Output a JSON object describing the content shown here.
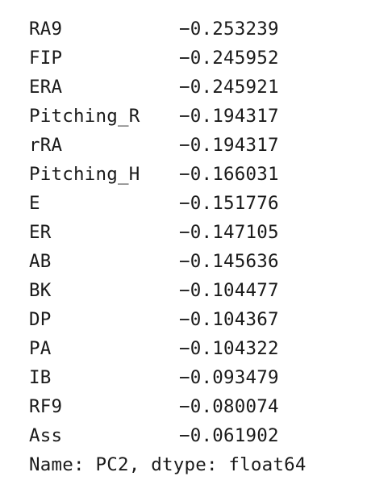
{
  "series": {
    "rows": [
      {
        "label": "RA9",
        "value": "−0.253239"
      },
      {
        "label": "FIP",
        "value": "−0.245952"
      },
      {
        "label": "ERA",
        "value": "−0.245921"
      },
      {
        "label": "Pitching_R",
        "value": "−0.194317"
      },
      {
        "label": "rRA",
        "value": "−0.194317"
      },
      {
        "label": "Pitching_H",
        "value": "−0.166031"
      },
      {
        "label": "E",
        "value": "−0.151776"
      },
      {
        "label": "ER",
        "value": "−0.147105"
      },
      {
        "label": "AB",
        "value": "−0.145636"
      },
      {
        "label": "BK",
        "value": "−0.104477"
      },
      {
        "label": "DP",
        "value": "−0.104367"
      },
      {
        "label": "PA",
        "value": "−0.104322"
      },
      {
        "label": "IB",
        "value": "−0.093479"
      },
      {
        "label": "RF9",
        "value": "−0.080074"
      },
      {
        "label": "Ass",
        "value": "−0.061902"
      }
    ],
    "footer": "Name: PC2, dtype: float64"
  }
}
